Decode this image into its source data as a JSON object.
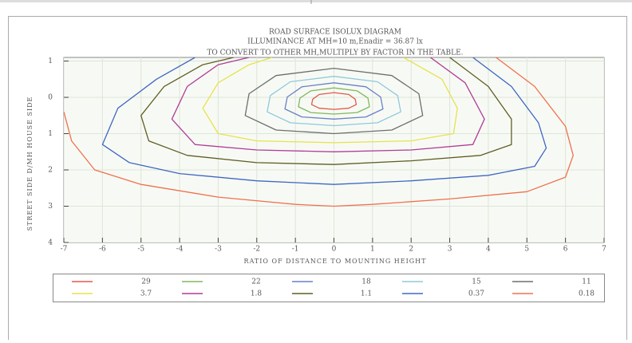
{
  "chart_data": {
    "type": "contour",
    "title_lines": [
      "ROAD SURFACE ISOLUX DIAGRAM",
      "ILLUMINANCE AT MH=10 m,Enadir = 36.87 lx",
      "TO CONVERT TO OTHER MH,MULTIPLY BY FACTOR IN THE TABLE."
    ],
    "xlabel": "RATIO OF DISTANCE TO MOUNTING HEIGHT",
    "ylabel": "STREET SIDE  D/MH  HOUSE SIDE",
    "xlim": [
      -7,
      7
    ],
    "ylim": [
      -1.1,
      4
    ],
    "y_inverted": true,
    "xticks": [
      -7,
      -6,
      -5,
      -4,
      -3,
      -2,
      -1,
      0,
      1,
      2,
      3,
      4,
      5,
      6,
      7
    ],
    "yticks": [
      {
        "value": -1,
        "label": "1"
      },
      0,
      1,
      2,
      3,
      4
    ],
    "grid": true,
    "series": [
      {
        "name": "29",
        "color": "#e05a4a",
        "x": [
          0,
          0.38,
          0.55,
          0.58,
          0.38,
          0,
          -0.38,
          -0.58,
          -0.55,
          -0.38,
          0
        ],
        "values": [
          -0.13,
          -0.08,
          0.05,
          0.2,
          0.3,
          0.33,
          0.3,
          0.2,
          0.05,
          -0.08,
          -0.13
        ]
      },
      {
        "name": "22",
        "color": "#80b860",
        "x": [
          0,
          0.6,
          0.88,
          0.92,
          0.6,
          0,
          -0.6,
          -0.92,
          -0.88,
          -0.6,
          0
        ],
        "values": [
          -0.26,
          -0.18,
          0.02,
          0.26,
          0.42,
          0.46,
          0.42,
          0.26,
          0.02,
          -0.18,
          -0.26
        ]
      },
      {
        "name": "18",
        "color": "#6a80c8",
        "x": [
          0,
          0.83,
          1.21,
          1.27,
          0.83,
          0,
          -0.83,
          -1.27,
          -1.21,
          -0.83,
          0
        ],
        "values": [
          -0.4,
          -0.29,
          -0.01,
          0.32,
          0.54,
          0.6,
          0.54,
          0.32,
          -0.01,
          -0.29,
          -0.4
        ]
      },
      {
        "name": "15",
        "color": "#90c8dc",
        "x": [
          0,
          1.13,
          1.65,
          1.73,
          1.13,
          0,
          -1.13,
          -1.73,
          -1.65,
          -1.13,
          0
        ],
        "values": [
          -0.58,
          -0.43,
          -0.05,
          0.4,
          0.7,
          0.78,
          0.7,
          0.4,
          -0.05,
          -0.43,
          -0.58
        ]
      },
      {
        "name": "11",
        "color": "#6e6e6e",
        "x": [
          0,
          1.5,
          2.2,
          2.3,
          1.5,
          0,
          -1.5,
          -2.3,
          -2.2,
          -1.5,
          0
        ],
        "values": [
          -0.8,
          -0.6,
          -0.1,
          0.5,
          0.9,
          1.0,
          0.9,
          0.5,
          -0.1,
          -0.6,
          -0.8
        ]
      },
      {
        "name": "3.7",
        "color": "#e6e24a",
        "x": [
          1.8,
          2.8,
          3.2,
          3.1,
          2,
          0,
          -2,
          -3,
          -3.4,
          -3.0,
          -2.2,
          -1.6
        ],
        "values": [
          -1.1,
          -0.5,
          0.3,
          1.0,
          1.2,
          1.25,
          1.2,
          1.0,
          0.3,
          -0.4,
          -0.9,
          -1.1
        ]
      },
      {
        "name": "1.8",
        "color": "#b03c98",
        "x": [
          2.5,
          3.4,
          3.9,
          3.6,
          2,
          0,
          -2,
          -3.6,
          -4.2,
          -3.8,
          -3,
          -2.2
        ],
        "values": [
          -1.1,
          -0.4,
          0.6,
          1.3,
          1.45,
          1.5,
          1.45,
          1.3,
          0.6,
          -0.3,
          -0.9,
          -1.1
        ]
      },
      {
        "name": "1.1",
        "color": "#5e5e24",
        "x": [
          3,
          4,
          4.6,
          4.6,
          3.8,
          2,
          0,
          -2,
          -3.8,
          -4.8,
          -5,
          -4.4,
          -3.4,
          -2.6
        ],
        "values": [
          -1.1,
          -0.3,
          0.6,
          1.3,
          1.6,
          1.75,
          1.85,
          1.8,
          1.6,
          1.2,
          0.5,
          -0.3,
          -0.9,
          -1.1
        ]
      },
      {
        "name": "0.37",
        "color": "#4066c4",
        "x": [
          3.6,
          4.6,
          5.3,
          5.5,
          5.2,
          4,
          2,
          0,
          -2,
          -4,
          -5.3,
          -6.0,
          -5.6,
          -4.6,
          -3.6
        ],
        "values": [
          -1.1,
          -0.3,
          0.7,
          1.4,
          1.9,
          2.15,
          2.3,
          2.4,
          2.3,
          2.1,
          1.8,
          1.3,
          0.3,
          -0.5,
          -1.1
        ]
      },
      {
        "name": "0.18",
        "color": "#f07050",
        "x": [
          4.2,
          5.2,
          6.0,
          6.2,
          6.0,
          5,
          3,
          1,
          0,
          -1,
          -3,
          -5,
          -6.2,
          -6.8,
          -7
        ],
        "values": [
          -1.1,
          -0.3,
          0.8,
          1.6,
          2.2,
          2.6,
          2.8,
          2.95,
          3.0,
          2.95,
          2.75,
          2.4,
          2.0,
          1.2,
          0.4
        ]
      }
    ]
  }
}
